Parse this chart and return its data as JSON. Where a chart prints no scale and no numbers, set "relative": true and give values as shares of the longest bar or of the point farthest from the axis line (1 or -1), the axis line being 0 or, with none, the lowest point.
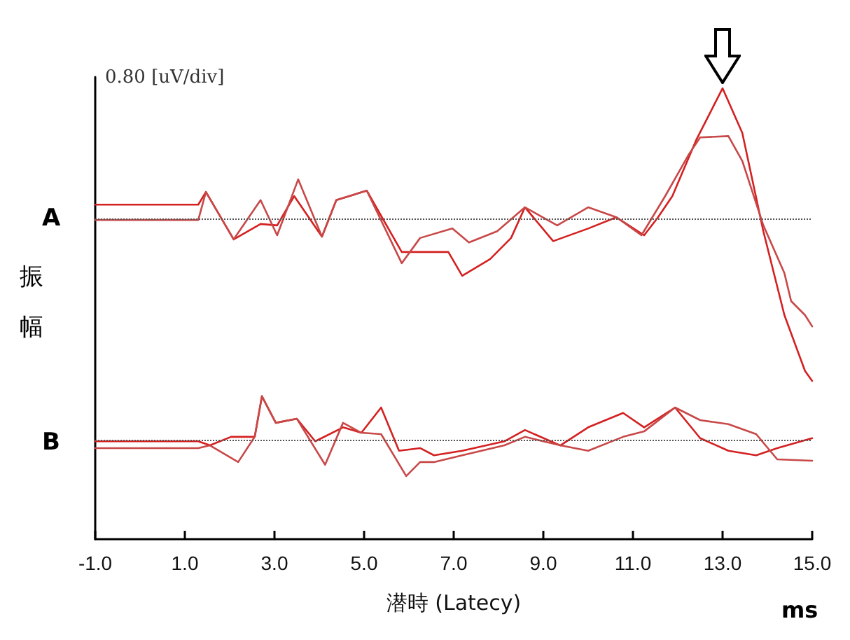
{
  "chart_data": {
    "type": "line",
    "relative": true,
    "xlabel": "潜時 (Latecy)",
    "ylabel": "振幅",
    "grid": false,
    "marker": "none",
    "line_style": "solid",
    "xlim": [
      -1,
      15
    ],
    "xticks": [
      {
        "value": -1,
        "label": "-1.0"
      },
      {
        "value": 1,
        "label": "1.0"
      },
      {
        "value": 3,
        "label": "3.0"
      },
      {
        "value": 5,
        "label": "5.0"
      },
      {
        "value": 7,
        "label": "7.0"
      },
      {
        "value": 9,
        "label": "9.0"
      },
      {
        "value": 11,
        "label": "11.0"
      },
      {
        "value": 13,
        "label": "13.0"
      },
      {
        "value": 15,
        "label": "15.0"
      }
    ],
    "annotations": [
      "0.80 [uV/div]",
      "ms",
      {
        "text": "A",
        "x": -1,
        "y": 0.708
      },
      {
        "text": "B",
        "x": -1,
        "y": 0.21
      }
    ],
    "ref_lines": [
      {
        "axis": "y",
        "value": 0.708,
        "color": "#555555",
        "line_style": "dotted"
      },
      {
        "axis": "y",
        "value": 0.22,
        "color": "#555555",
        "line_style": "dotted"
      }
    ],
    "series": [
      {
        "color": "#d42020",
        "x": [
          -1,
          1.3,
          1.47,
          2.09,
          2.69,
          3.06,
          3.44,
          4.06,
          4.38,
          5.06,
          5.84,
          6.25,
          6.88,
          7.19,
          7.81,
          8.28,
          8.59,
          9.22,
          10.0,
          10.63,
          11.25,
          11.56,
          11.88,
          12.41,
          13.0,
          13.44,
          13.91,
          14.38,
          14.84,
          15.0
        ],
        "values": [
          0.742,
          0.742,
          0.77,
          0.665,
          0.699,
          0.696,
          0.761,
          0.671,
          0.752,
          0.773,
          0.637,
          0.637,
          0.637,
          0.584,
          0.621,
          0.668,
          0.736,
          0.661,
          0.689,
          0.714,
          0.674,
          0.714,
          0.761,
          0.885,
          1,
          0.901,
          0.683,
          0.497,
          0.373,
          0.351
        ]
      },
      {
        "color": "#c84848",
        "x": [
          -1,
          1.3,
          1.47,
          2.09,
          2.69,
          3.06,
          3.53,
          4.06,
          4.38,
          5.06,
          5.84,
          6.25,
          6.97,
          7.34,
          7.97,
          8.59,
          9.31,
          10.0,
          10.63,
          11.19,
          11.72,
          12.25,
          12.5,
          13.13,
          13.44,
          13.91,
          14.38,
          14.53,
          14.84,
          15.0
        ],
        "values": [
          0.708,
          0.708,
          0.77,
          0.665,
          0.752,
          0.674,
          0.798,
          0.671,
          0.752,
          0.773,
          0.612,
          0.668,
          0.689,
          0.658,
          0.683,
          0.736,
          0.696,
          0.736,
          0.714,
          0.674,
          0.761,
          0.854,
          0.891,
          0.894,
          0.839,
          0.696,
          0.59,
          0.528,
          0.497,
          0.472
        ]
      },
      {
        "color": "#d42020",
        "x": [
          -1,
          1.3,
          1.56,
          2.03,
          2.56,
          2.72,
          3.03,
          3.5,
          3.91,
          4.53,
          4.94,
          5.38,
          5.78,
          6.25,
          6.56,
          7.19,
          8.13,
          8.59,
          9.38,
          10.0,
          10.78,
          11.25,
          11.94,
          12.5,
          13.13,
          13.75,
          14.22,
          15.0
        ],
        "values": [
          0.217,
          0.217,
          0.208,
          0.227,
          0.227,
          0.317,
          0.258,
          0.267,
          0.217,
          0.248,
          0.236,
          0.292,
          0.196,
          0.202,
          0.186,
          0.196,
          0.217,
          0.242,
          0.208,
          0.248,
          0.28,
          0.248,
          0.292,
          0.224,
          0.196,
          0.186,
          0.202,
          0.224
        ]
      },
      {
        "color": "#c84848",
        "x": [
          -1,
          1.3,
          1.56,
          2.19,
          2.56,
          2.72,
          3.03,
          3.5,
          4.13,
          4.53,
          4.94,
          5.38,
          5.94,
          6.25,
          6.56,
          7.19,
          8.13,
          8.59,
          9.38,
          10.0,
          10.78,
          11.25,
          11.94,
          12.5,
          13.13,
          13.75,
          14.22,
          15.0
        ],
        "values": [
          0.202,
          0.202,
          0.208,
          0.171,
          0.227,
          0.317,
          0.258,
          0.267,
          0.165,
          0.258,
          0.236,
          0.233,
          0.14,
          0.171,
          0.171,
          0.186,
          0.208,
          0.227,
          0.208,
          0.196,
          0.227,
          0.239,
          0.292,
          0.264,
          0.255,
          0.233,
          0.177,
          0.174
        ]
      }
    ]
  }
}
